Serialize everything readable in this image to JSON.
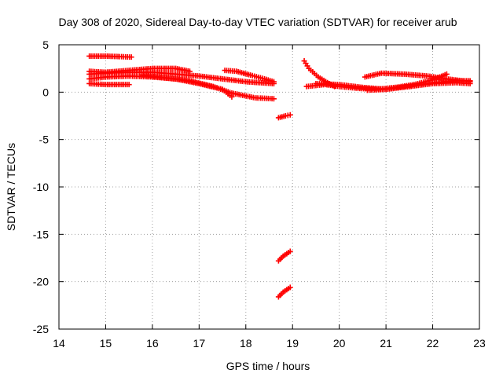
{
  "chart_data": {
    "type": "scatter",
    "title": "Day 308 of 2020, Sidereal Day-to-day VTEC variation (SDTVAR) for receiver arub",
    "xlabel": "GPS time / hours",
    "ylabel": "SDTVAR / TECUs",
    "xlim": [
      14,
      23
    ],
    "ylim": [
      -25,
      5
    ],
    "xticks": [
      14,
      15,
      16,
      17,
      18,
      19,
      20,
      21,
      22,
      23
    ],
    "yticks": [
      -25,
      -20,
      -15,
      -10,
      -5,
      0,
      5
    ],
    "grid": true,
    "marker": "plus",
    "color": "#ff0000",
    "series": [
      {
        "x": [
          14.65,
          15.0,
          15.3,
          15.55
        ],
        "y": [
          3.8,
          3.8,
          3.75,
          3.7
        ]
      },
      {
        "x": [
          14.65,
          15.0,
          15.5,
          16.0,
          16.5,
          16.8
        ],
        "y": [
          2.2,
          2.1,
          2.3,
          2.5,
          2.5,
          2.2
        ]
      },
      {
        "x": [
          14.65,
          15.0,
          15.5,
          16.0,
          16.5,
          17.0,
          17.5,
          18.0,
          18.3,
          18.6
        ],
        "y": [
          1.9,
          2.0,
          2.1,
          2.1,
          1.9,
          1.7,
          1.4,
          1.1,
          1.0,
          0.9
        ]
      },
      {
        "x": [
          14.65,
          15.0,
          15.5,
          16.0,
          16.5,
          17.0,
          17.5,
          17.7
        ],
        "y": [
          1.4,
          1.6,
          1.7,
          1.6,
          1.4,
          0.9,
          0.3,
          -0.5
        ]
      },
      {
        "x": [
          14.65,
          15.0,
          15.5
        ],
        "y": [
          0.9,
          0.8,
          0.8
        ]
      },
      {
        "x": [
          15.8,
          16.3,
          16.8,
          17.3,
          17.7,
          18.2,
          18.6
        ],
        "y": [
          1.8,
          1.5,
          1.2,
          0.6,
          -0.1,
          -0.6,
          -0.7
        ]
      },
      {
        "x": [
          17.55,
          17.8,
          18.1,
          18.4,
          18.6
        ],
        "y": [
          2.3,
          2.2,
          1.8,
          1.4,
          1.1
        ]
      },
      {
        "x": [
          18.7,
          18.85,
          18.95
        ],
        "y": [
          -2.7,
          -2.5,
          -2.4
        ]
      },
      {
        "x": [
          18.7,
          18.8,
          18.95
        ],
        "y": [
          -17.8,
          -17.3,
          -16.8
        ]
      },
      {
        "x": [
          18.7,
          18.8,
          18.95
        ],
        "y": [
          -21.6,
          -21.1,
          -20.6
        ]
      },
      {
        "x": [
          19.25,
          19.35,
          19.55,
          19.75,
          19.9
        ],
        "y": [
          3.3,
          2.5,
          1.6,
          1.0,
          0.6
        ]
      },
      {
        "x": [
          19.3,
          19.7,
          20.0,
          20.4,
          20.8,
          21.2,
          21.6,
          22.0,
          22.3
        ],
        "y": [
          0.6,
          0.8,
          0.6,
          0.4,
          0.3,
          0.5,
          0.8,
          1.3,
          1.9
        ]
      },
      {
        "x": [
          19.5,
          20.0,
          20.5,
          21.0,
          21.5,
          22.0,
          22.5,
          22.8
        ],
        "y": [
          0.9,
          0.8,
          0.5,
          0.3,
          0.6,
          0.9,
          1.0,
          0.9
        ]
      },
      {
        "x": [
          20.6,
          21.0,
          21.5,
          22.0,
          22.5,
          22.8
        ],
        "y": [
          0.2,
          0.3,
          0.6,
          1.0,
          1.2,
          1.2
        ]
      },
      {
        "x": [
          20.55,
          20.9,
          21.4,
          21.9,
          22.3,
          22.8
        ],
        "y": [
          1.6,
          2.0,
          1.9,
          1.7,
          1.4,
          1.1
        ]
      }
    ]
  }
}
